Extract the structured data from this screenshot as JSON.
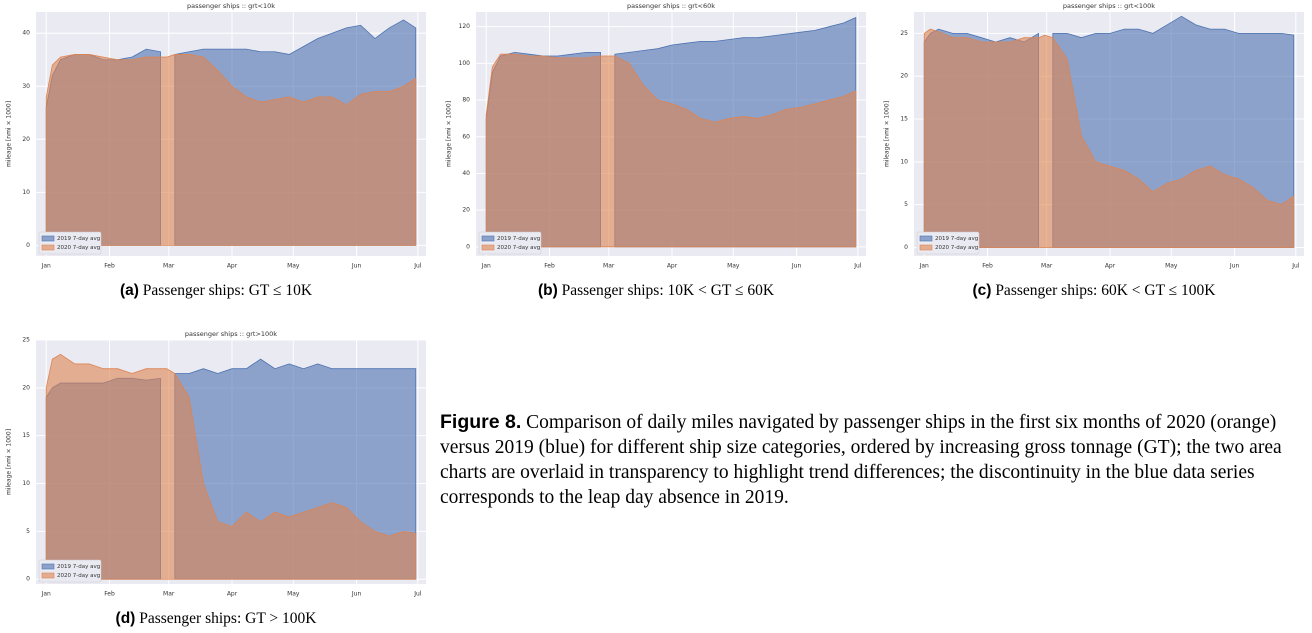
{
  "chart_data": [
    {
      "type": "area",
      "title": "passenger ships :: grt<10k",
      "ylabel": "mileage [nmi × 1000]",
      "caption": {
        "tag": "(a)",
        "text": "Passenger ships: GT ≤ 10K"
      },
      "x": [
        0,
        3,
        7,
        14,
        21,
        28,
        35,
        42,
        49,
        56,
        59,
        63,
        70,
        77,
        84,
        91,
        98,
        105,
        112,
        119,
        126,
        133,
        140,
        147,
        154,
        161,
        168,
        175,
        181
      ],
      "xlim": [
        -5,
        186
      ],
      "xticks": [
        {
          "value": 0,
          "label": "Jan"
        },
        {
          "value": 31,
          "label": "Feb"
        },
        {
          "value": 60,
          "label": "Mar"
        },
        {
          "value": 91,
          "label": "Apr"
        },
        {
          "value": 121,
          "label": "May"
        },
        {
          "value": 152,
          "label": "Jun"
        },
        {
          "value": 182,
          "label": "Jul"
        }
      ],
      "ylim": [
        -2,
        44
      ],
      "yticks": [
        0,
        10,
        20,
        30,
        40
      ],
      "grid": true,
      "legend": "lower left",
      "series": [
        {
          "name": "2019 7-day avg",
          "color": "#4c72b0",
          "values": [
            26,
            32,
            35,
            36,
            36,
            35,
            35,
            35.5,
            37,
            36.5,
            null,
            36,
            36.5,
            37,
            37,
            37,
            37,
            36.5,
            36.5,
            36,
            37.5,
            39,
            40,
            41,
            41.5,
            39,
            41,
            42.5,
            41
          ]
        },
        {
          "name": "2020 7-day avg",
          "color": "#dd8452",
          "values": [
            28,
            34,
            35.5,
            36,
            36,
            35.5,
            35,
            35,
            35.5,
            35.5,
            35.5,
            36,
            36,
            35.5,
            33,
            30,
            28,
            27,
            27.5,
            28,
            27,
            28,
            28,
            26.5,
            28.5,
            29,
            29,
            30,
            31.5
          ]
        }
      ]
    },
    {
      "type": "area",
      "title": "passenger ships :: grt<60k",
      "ylabel": "mileage [nmi × 1000]",
      "caption": {
        "tag": "(b)",
        "text": "Passenger ships: 10K < GT ≤ 60K"
      },
      "x": [
        0,
        3,
        7,
        14,
        21,
        28,
        35,
        42,
        49,
        56,
        59,
        63,
        70,
        77,
        84,
        91,
        98,
        105,
        112,
        119,
        126,
        133,
        140,
        147,
        154,
        161,
        168,
        175,
        181
      ],
      "xlim": [
        -5,
        186
      ],
      "xticks": [
        {
          "value": 0,
          "label": "Jan"
        },
        {
          "value": 31,
          "label": "Feb"
        },
        {
          "value": 60,
          "label": "Mar"
        },
        {
          "value": 91,
          "label": "Apr"
        },
        {
          "value": 121,
          "label": "May"
        },
        {
          "value": 152,
          "label": "Jun"
        },
        {
          "value": 182,
          "label": "Jul"
        }
      ],
      "ylim": [
        -5,
        128
      ],
      "yticks": [
        0,
        20,
        40,
        60,
        80,
        100,
        120
      ],
      "grid": true,
      "legend": "lower left",
      "series": [
        {
          "name": "2019 7-day avg",
          "color": "#4c72b0",
          "values": [
            70,
            95,
            104,
            106,
            105,
            104,
            104,
            105,
            106,
            106,
            null,
            105,
            106,
            107,
            108,
            110,
            111,
            112,
            112,
            113,
            114,
            114,
            115,
            116,
            117,
            118,
            120,
            122,
            125
          ]
        },
        {
          "name": "2020 7-day avg",
          "color": "#dd8452",
          "values": [
            72,
            98,
            105,
            105,
            104,
            104,
            103,
            103,
            103,
            104,
            104,
            104,
            100,
            88,
            80,
            78,
            75,
            70,
            68,
            70,
            71,
            70,
            72,
            75,
            76,
            78,
            80,
            82,
            85
          ]
        }
      ]
    },
    {
      "type": "area",
      "title": "passenger ships :: grt<100k",
      "ylabel": "mileage [nmi × 1000]",
      "caption": {
        "tag": "(c)",
        "text": "Passenger ships: 60K < GT ≤ 100K"
      },
      "x": [
        0,
        3,
        7,
        14,
        21,
        28,
        35,
        42,
        49,
        56,
        59,
        63,
        70,
        77,
        84,
        91,
        98,
        105,
        112,
        119,
        126,
        133,
        140,
        147,
        154,
        161,
        168,
        175,
        181
      ],
      "xlim": [
        -5,
        186
      ],
      "xticks": [
        {
          "value": 0,
          "label": "Jan"
        },
        {
          "value": 31,
          "label": "Feb"
        },
        {
          "value": 60,
          "label": "Mar"
        },
        {
          "value": 91,
          "label": "Apr"
        },
        {
          "value": 121,
          "label": "May"
        },
        {
          "value": 152,
          "label": "Jun"
        },
        {
          "value": 182,
          "label": "Jul"
        }
      ],
      "ylim": [
        -1,
        27.5
      ],
      "yticks": [
        0,
        5,
        10,
        15,
        20,
        25
      ],
      "grid": true,
      "legend": "lower left",
      "series": [
        {
          "name": "2019 7-day avg",
          "color": "#4c72b0",
          "values": [
            24,
            25,
            25.5,
            25,
            25,
            24.5,
            24,
            24.5,
            24,
            25,
            null,
            25,
            25,
            24.5,
            25,
            25,
            25.5,
            25.5,
            25,
            26,
            27,
            26,
            25.5,
            25.5,
            25,
            25,
            25,
            25,
            24.8
          ]
        },
        {
          "name": "2020 7-day avg",
          "color": "#dd8452",
          "values": [
            25,
            25.5,
            25.2,
            24.5,
            24.5,
            24,
            24,
            24,
            24.5,
            24.5,
            24.8,
            24.5,
            22,
            13,
            10,
            9.5,
            9,
            8,
            6.5,
            7.5,
            8,
            9,
            9.5,
            8.5,
            8,
            7,
            5.5,
            5,
            6
          ]
        }
      ]
    },
    {
      "type": "area",
      "title": "passenger ships :: grt>100k",
      "ylabel": "mileage [nmi × 1000]",
      "caption": {
        "tag": "(d)",
        "text": "Passenger ships: GT > 100K"
      },
      "x": [
        0,
        3,
        7,
        14,
        21,
        28,
        35,
        42,
        49,
        56,
        59,
        63,
        70,
        77,
        84,
        91,
        98,
        105,
        112,
        119,
        126,
        133,
        140,
        147,
        154,
        161,
        168,
        175,
        181
      ],
      "xlim": [
        -5,
        186
      ],
      "xticks": [
        {
          "value": 0,
          "label": "Jan"
        },
        {
          "value": 31,
          "label": "Feb"
        },
        {
          "value": 60,
          "label": "Mar"
        },
        {
          "value": 91,
          "label": "Apr"
        },
        {
          "value": 121,
          "label": "May"
        },
        {
          "value": 152,
          "label": "Jun"
        },
        {
          "value": 182,
          "label": "Jul"
        }
      ],
      "ylim": [
        -0.5,
        25
      ],
      "yticks": [
        0,
        5,
        10,
        15,
        20,
        25
      ],
      "grid": true,
      "legend": "lower left",
      "series": [
        {
          "name": "2019 7-day avg",
          "color": "#4c72b0",
          "values": [
            19,
            20,
            20.5,
            20.5,
            20.5,
            20.5,
            21,
            21,
            20.8,
            21,
            null,
            21.5,
            21.5,
            22,
            21.5,
            22,
            22,
            23,
            22,
            22.5,
            22,
            22.5,
            22,
            22,
            22,
            22,
            22,
            22,
            22
          ]
        },
        {
          "name": "2020 7-day avg",
          "color": "#dd8452",
          "values": [
            20,
            23,
            23.5,
            22.5,
            22.5,
            22,
            22,
            21.5,
            22,
            22,
            22,
            21.5,
            19,
            10,
            6,
            5.5,
            7,
            6,
            7,
            6.5,
            7,
            7.5,
            8,
            7.5,
            6,
            5,
            4.5,
            5,
            4.8
          ]
        }
      ]
    }
  ],
  "figure_caption": {
    "label": "Figure 8.",
    "text": "Comparison of daily miles navigated by passenger ships in the first six months of 2020 (orange) versus 2019 (blue) for different ship size categories, ordered by increasing gross tonnage (GT); the two area charts are overlaid in transparency to highlight trend differences; the discontinuity in the blue data series corresponds to the leap day absence in 2019."
  }
}
